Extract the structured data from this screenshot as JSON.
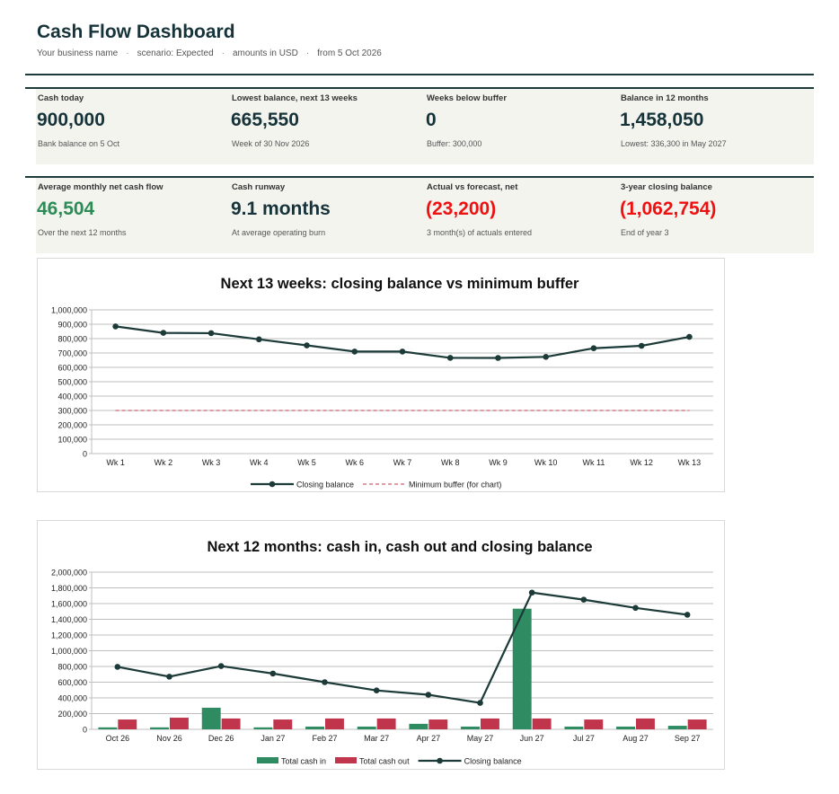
{
  "header": {
    "title": "Cash Flow Dashboard",
    "business": "Your business name",
    "scenario": "scenario: Expected",
    "currency": "amounts in USD",
    "start": "from 5 Oct 2026",
    "separator": "·"
  },
  "kpis_row1": [
    {
      "label": "Cash today",
      "value": "900,000",
      "note": "Bank balance on 5 Oct",
      "tone": "normal"
    },
    {
      "label": "Lowest balance, next 13 weeks",
      "value": "665,550",
      "note": "Week of 30 Nov 2026",
      "tone": "normal"
    },
    {
      "label": "Weeks below buffer",
      "value": "0",
      "note": "Buffer: 300,000",
      "tone": "normal"
    },
    {
      "label": "Balance in 12 months",
      "value": "1,458,050",
      "note": "Lowest: 336,300 in May 2027",
      "tone": "normal"
    }
  ],
  "kpis_row2": [
    {
      "label": "Average monthly net cash flow",
      "value": "46,504",
      "note": "Over the next 12 months",
      "tone": "green"
    },
    {
      "label": "Cash runway",
      "value": "9.1 months",
      "note": "At average operating burn",
      "tone": "normal"
    },
    {
      "label": "Actual vs forecast, net",
      "value": "(23,200)",
      "note": "3 month(s) of actuals entered",
      "tone": "red"
    },
    {
      "label": "3-year closing balance",
      "value": "(1,062,754)",
      "note": "End of year 3",
      "tone": "red"
    }
  ],
  "colors": {
    "balance_line": "#1b3a38",
    "buffer_line": "#c0394b",
    "cash_in": "#2e8b62",
    "cash_out": "#c0354c",
    "grid": "#bfbfbf"
  },
  "chart_data": [
    {
      "type": "line",
      "title": "Next 13 weeks: closing balance vs minimum buffer",
      "categories": [
        "Wk 1",
        "Wk 2",
        "Wk 3",
        "Wk 4",
        "Wk 5",
        "Wk 6",
        "Wk 7",
        "Wk 8",
        "Wk 9",
        "Wk 10",
        "Wk 11",
        "Wk 12",
        "Wk 13"
      ],
      "ylim": [
        0,
        1000000
      ],
      "yticks": [
        "0",
        "100,000",
        "200,000",
        "300,000",
        "400,000",
        "500,000",
        "600,000",
        "700,000",
        "800,000",
        "900,000",
        "1,000,000"
      ],
      "grid": true,
      "legend_position": "bottom",
      "series": [
        {
          "name": "Closing balance",
          "kind": "line-markers",
          "values": [
            885000,
            840000,
            838000,
            795000,
            753000,
            710000,
            710000,
            666000,
            665550,
            673000,
            733000,
            750000,
            812000
          ]
        },
        {
          "name": "Minimum buffer (for chart)",
          "kind": "dashed",
          "values": [
            300000,
            300000,
            300000,
            300000,
            300000,
            300000,
            300000,
            300000,
            300000,
            300000,
            300000,
            300000,
            300000
          ]
        }
      ]
    },
    {
      "type": "bar",
      "title": "Next 12 months: cash in, cash out and closing balance",
      "categories": [
        "Oct 26",
        "Nov 26",
        "Dec 26",
        "Jan 27",
        "Feb 27",
        "Mar 27",
        "Apr 27",
        "May 27",
        "Jun 27",
        "Jul 27",
        "Aug 27",
        "Sep 27"
      ],
      "ylim": [
        0,
        2000000
      ],
      "yticks": [
        "0",
        "200,000",
        "400,000",
        "600,000",
        "800,000",
        "1,000,000",
        "1,200,000",
        "1,400,000",
        "1,600,000",
        "1,800,000",
        "2,000,000"
      ],
      "grid": true,
      "legend_position": "bottom",
      "series": [
        {
          "name": "Total cash in",
          "kind": "bar",
          "values": [
            25000,
            25000,
            275000,
            25000,
            35000,
            35000,
            70000,
            35000,
            1535000,
            35000,
            35000,
            45000
          ]
        },
        {
          "name": "Total cash out",
          "kind": "bar",
          "values": [
            125000,
            148000,
            138000,
            125000,
            138000,
            138000,
            125000,
            138000,
            138000,
            125000,
            138000,
            125000
          ]
        },
        {
          "name": "Closing balance",
          "kind": "line-markers",
          "values": [
            795000,
            670000,
            805000,
            710000,
            600000,
            495000,
            440000,
            336300,
            1740000,
            1650000,
            1545000,
            1458050
          ]
        }
      ]
    }
  ]
}
